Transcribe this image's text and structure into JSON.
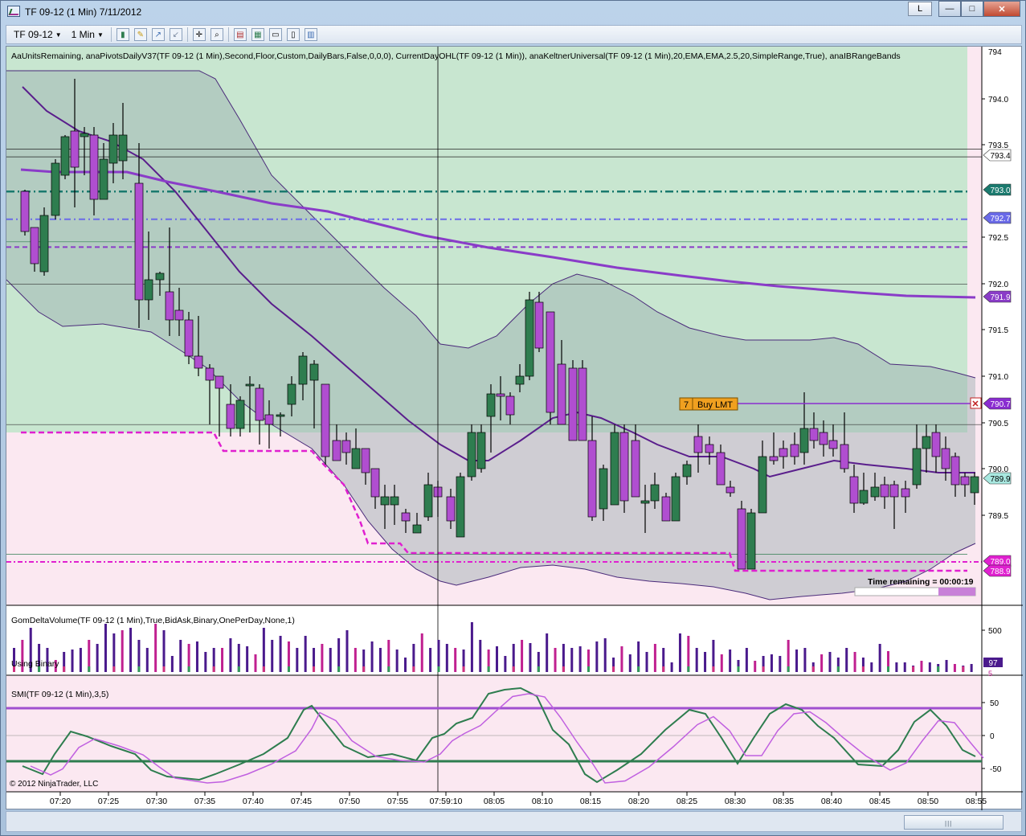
{
  "window": {
    "title": "TF 09-12 (1 Min)  7/11/2012",
    "l_button": "L",
    "min_label": "—",
    "max_label": "□",
    "close_label": "✕"
  },
  "toolbar": {
    "instrument": "TF 09-12",
    "interval": "1 Min"
  },
  "price_panel": {
    "indicator_text": "AaUnitsRemaining, anaPivotsDailyV37(TF 09-12 (1 Min),Second,Floor,Custom,DailyBars,False,0,0,0), CurrentDayOHL(TF 09-12 (1 Min)), anaKeltnerUniversal(TF 09-12 (1 Min),20,EMA,EMA,2.5,20,SimpleRange,True), anaIBRangeBands",
    "axis_ticks": [
      "794.0",
      "793.5",
      "792.5",
      "792.0",
      "791.5",
      "791.0",
      "790.5",
      "790.0",
      "789.5"
    ],
    "top_tick": "794",
    "price_markers": [
      {
        "text": "793.4",
        "color": "#ffffff",
        "text_color": "#000000"
      },
      {
        "text": "793.0",
        "color": "#1a7a6e",
        "text_color": "#ffffff"
      },
      {
        "text": "792.7",
        "color": "#6a6ae8",
        "text_color": "#ffffff"
      },
      {
        "text": "791.9",
        "color": "#8a3cc8",
        "text_color": "#ffffff"
      },
      {
        "text": "790.7",
        "color": "#8a2cd0",
        "text_color": "#ffffff"
      },
      {
        "text": "789.9",
        "color": "#a8e8e0",
        "text_color": "#000000"
      },
      {
        "text": "789.0",
        "color": "#e020d0",
        "text_color": "#ffffff"
      },
      {
        "text": "788.9",
        "color": "#e020d0",
        "text_color": "#ffffff"
      }
    ],
    "order_qty": "7",
    "order_label": "Buy LMT",
    "order_close": "✕",
    "time_remaining": "Time remaining = 00:00:19"
  },
  "volume_panel": {
    "indicator_text": "GomDeltaVolume(TF 09-12 (1 Min),True,BidAsk,Binary,OnePerDay,None,1)",
    "mode_text": "Using Binary",
    "axis_tick": "500",
    "value_marker": "97",
    "bottom_marker": "5"
  },
  "smi_panel": {
    "indicator_text": "SMI(TF 09-12 (1 Min),3,5)",
    "axis_ticks": [
      "50",
      "0",
      "-50"
    ],
    "copyright": "© 2012 NinjaTrader, LLC"
  },
  "time_axis": {
    "labels": [
      "07:20",
      "07:25",
      "07:30",
      "07:35",
      "07:40",
      "07:45",
      "07:50",
      "07:55",
      "07:59:10",
      "08:05",
      "08:10",
      "08:15",
      "08:20",
      "08:25",
      "08:30",
      "08:35",
      "08:40",
      "08:45",
      "08:50",
      "08:55"
    ]
  },
  "colors": {
    "up_candle": "#2e7d4f",
    "down_candle": "#b04ed0",
    "keltner_fill": "#9aaeb0",
    "ib_green": "#c8e6d0",
    "ib_pink": "#fbe8f1",
    "pivot_magenta": "#e020d0",
    "ema_purple": "#5a1e8c",
    "smi_green": "#2e7d4f",
    "smi_purple": "#c060e0"
  }
}
